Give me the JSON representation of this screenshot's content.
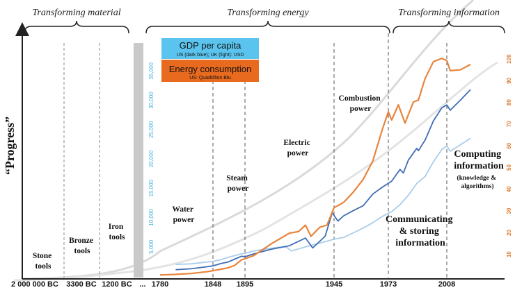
{
  "chart_data": {
    "type": "line",
    "ylabel": "“Progress”",
    "eras": [
      {
        "label": "Transforming material"
      },
      {
        "label": "Transforming energy"
      },
      {
        "label": "Transforming information"
      }
    ],
    "x_ticks": [
      "2 000 000 BC",
      "3300 BC",
      "1200 BC",
      "...",
      "1780",
      "1848",
      "1895",
      "1945",
      "1973",
      "2008"
    ],
    "phases": [
      {
        "lines": [
          "Stone",
          "tools"
        ]
      },
      {
        "lines": [
          "Bronze",
          "tools"
        ]
      },
      {
        "lines": [
          "Iron",
          "tools"
        ]
      },
      {
        "lines": [
          "Water",
          "power"
        ]
      },
      {
        "lines": [
          "Steam",
          "power"
        ]
      },
      {
        "lines": [
          "Electric",
          "power"
        ]
      },
      {
        "lines": [
          "Combustion",
          "power"
        ]
      },
      {
        "lines": [
          "Communicating",
          "& storing",
          "information"
        ]
      },
      {
        "lines": [
          "Computing",
          "information"
        ],
        "sub": [
          "(knowledge &",
          "algorithms)"
        ]
      }
    ],
    "legend": [
      {
        "title": "GDP per capita",
        "subtitle": "US (dark blue); UK (light): USD",
        "color": "#5bc4ee"
      },
      {
        "title": "Energy consumption",
        "subtitle": "US: Quadrillion Btu",
        "color": "#e86a1f"
      }
    ],
    "left_axis": {
      "label": "GDP per capita (USD)",
      "ticks": [
        5000,
        10000,
        15000,
        20000,
        25000,
        30000,
        35000
      ],
      "range": [
        0,
        40000
      ],
      "color": "#46b4e0"
    },
    "right_axis": {
      "label": "Energy consumption (Quadrillion Btu)",
      "ticks": [
        10,
        20,
        30,
        40,
        50,
        60,
        70,
        80,
        90,
        100
      ],
      "range": [
        0,
        108
      ],
      "color": "#e07a2e"
    },
    "x_range": [
      1780,
      2015
    ],
    "series": [
      {
        "name": "US GDP per capita (USD)",
        "axis": "left",
        "color": "#3f6cb5",
        "points": [
          [
            1800,
            1100
          ],
          [
            1820,
            1250
          ],
          [
            1840,
            1600
          ],
          [
            1848,
            1750
          ],
          [
            1860,
            2150
          ],
          [
            1870,
            2400
          ],
          [
            1880,
            2900
          ],
          [
            1890,
            3400
          ],
          [
            1895,
            3300
          ],
          [
            1900,
            3800
          ],
          [
            1910,
            4600
          ],
          [
            1920,
            5200
          ],
          [
            1929,
            6500
          ],
          [
            1933,
            4800
          ],
          [
            1940,
            6800
          ],
          [
            1944,
            10800
          ],
          [
            1947,
            9400
          ],
          [
            1950,
            10300
          ],
          [
            1955,
            11200
          ],
          [
            1960,
            12000
          ],
          [
            1965,
            14000
          ],
          [
            1970,
            15200
          ],
          [
            1975,
            16200
          ],
          [
            1980,
            18200
          ],
          [
            1982,
            17600
          ],
          [
            1985,
            19800
          ],
          [
            1990,
            21800
          ],
          [
            1991,
            21400
          ],
          [
            1995,
            23200
          ],
          [
            2000,
            26500
          ],
          [
            2005,
            28700
          ],
          [
            2008,
            29200
          ],
          [
            2009,
            28300
          ],
          [
            2012,
            30000
          ],
          [
            2015,
            31800
          ]
        ]
      },
      {
        "name": "UK GDP per capita (USD)",
        "axis": "left",
        "color": "#a9cdea",
        "points": [
          [
            1800,
            2000
          ],
          [
            1820,
            2100
          ],
          [
            1840,
            2400
          ],
          [
            1848,
            2500
          ],
          [
            1860,
            2800
          ],
          [
            1870,
            3200
          ],
          [
            1880,
            3500
          ],
          [
            1890,
            3800
          ],
          [
            1895,
            3900
          ],
          [
            1900,
            4300
          ],
          [
            1913,
            4900
          ],
          [
            1918,
            5000
          ],
          [
            1921,
            4300
          ],
          [
            1929,
            5000
          ],
          [
            1938,
            5700
          ],
          [
            1945,
            6300
          ],
          [
            1950,
            6600
          ],
          [
            1955,
            7400
          ],
          [
            1960,
            8200
          ],
          [
            1965,
            9100
          ],
          [
            1970,
            10200
          ],
          [
            1975,
            11000
          ],
          [
            1980,
            12200
          ],
          [
            1985,
            13800
          ],
          [
            1990,
            15800
          ],
          [
            1995,
            17000
          ],
          [
            2000,
            19500
          ],
          [
            2005,
            21600
          ],
          [
            2008,
            22200
          ],
          [
            2009,
            21300
          ],
          [
            2015,
            23500
          ]
        ]
      },
      {
        "name": "US Energy consumption (Quadrillion Btu)",
        "axis": "right",
        "color": "#e8843c",
        "points": [
          [
            1780,
            0.5
          ],
          [
            1800,
            0.8
          ],
          [
            1820,
            1.2
          ],
          [
            1840,
            2
          ],
          [
            1848,
            2.5
          ],
          [
            1860,
            3.2
          ],
          [
            1870,
            3.8
          ],
          [
            1880,
            5
          ],
          [
            1890,
            7.5
          ],
          [
            1895,
            8
          ],
          [
            1900,
            9.5
          ],
          [
            1910,
            15
          ],
          [
            1920,
            19.8
          ],
          [
            1925,
            20.5
          ],
          [
            1929,
            23.5
          ],
          [
            1932,
            18.3
          ],
          [
            1937,
            22.5
          ],
          [
            1941,
            23.5
          ],
          [
            1945,
            31.5
          ],
          [
            1950,
            34
          ],
          [
            1955,
            38.8
          ],
          [
            1960,
            44.5
          ],
          [
            1965,
            53
          ],
          [
            1970,
            67.8
          ],
          [
            1973,
            75.7
          ],
          [
            1975,
            71.9
          ],
          [
            1979,
            78.9
          ],
          [
            1983,
            70.5
          ],
          [
            1988,
            80.2
          ],
          [
            1991,
            81.1
          ],
          [
            1995,
            91
          ],
          [
            2000,
            98.8
          ],
          [
            2005,
            100.3
          ],
          [
            2008,
            99.3
          ],
          [
            2009,
            94.6
          ],
          [
            2012,
            95
          ],
          [
            2015,
            97.5
          ]
        ]
      }
    ],
    "trend_lines": [
      {
        "name": "progress-trend-upper",
        "color": "#dadada"
      },
      {
        "name": "progress-trend-lower",
        "color": "#dadada"
      }
    ]
  }
}
